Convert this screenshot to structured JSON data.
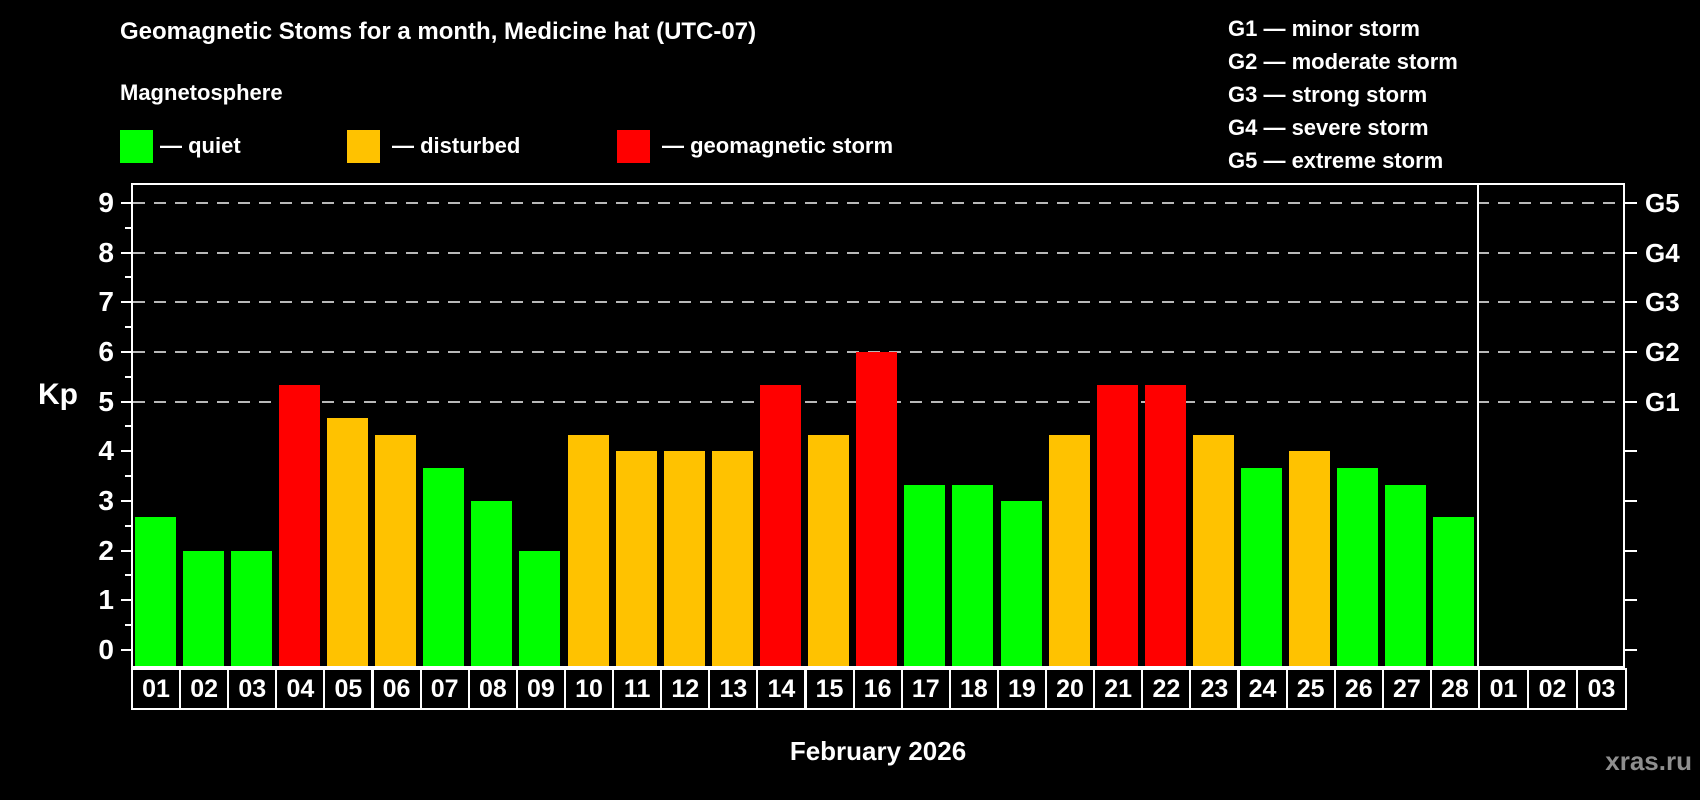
{
  "header": {
    "title": "Geomagnetic Stoms for a month, Medicine hat (UTC-07)",
    "subtitle": "Magnetosphere"
  },
  "legend": {
    "items": [
      {
        "name": "quiet",
        "label": "— quiet",
        "color": "#00ff00"
      },
      {
        "name": "disturbed",
        "label": "— disturbed",
        "color": "#ffc200"
      },
      {
        "name": "storm",
        "label": "— geomagnetic storm",
        "color": "#ff0000"
      }
    ]
  },
  "g_legend": {
    "items": [
      {
        "code": "G1",
        "label": "G1 — minor storm"
      },
      {
        "code": "G2",
        "label": "G2 — moderate storm"
      },
      {
        "code": "G3",
        "label": "G3 — strong storm"
      },
      {
        "code": "G4",
        "label": "G4 — severe storm"
      },
      {
        "code": "G5",
        "label": "G5 — extreme storm"
      }
    ]
  },
  "chart_data": {
    "type": "bar",
    "title": "Geomagnetic Stoms for a month, Medicine hat (UTC-07)",
    "subtitle": "Magnetosphere",
    "xlabel": "February 2026",
    "ylabel": "Kp",
    "ylim": [
      0,
      9.4
    ],
    "y_ticks": [
      0,
      1,
      2,
      3,
      4,
      5,
      6,
      7,
      8,
      9
    ],
    "grid": "dashed horizontal lines at Kp 5-9 only",
    "legend_position": "top-left",
    "g_axis_levels": [
      {
        "kp": 5,
        "label": "G1"
      },
      {
        "kp": 6,
        "label": "G2"
      },
      {
        "kp": 7,
        "label": "G3"
      },
      {
        "kp": 8,
        "label": "G4"
      },
      {
        "kp": 9,
        "label": "G5"
      }
    ],
    "categories": [
      "01",
      "02",
      "03",
      "04",
      "05",
      "06",
      "07",
      "08",
      "09",
      "10",
      "11",
      "12",
      "13",
      "14",
      "15",
      "16",
      "17",
      "18",
      "19",
      "20",
      "21",
      "22",
      "23",
      "24",
      "25",
      "26",
      "27",
      "28"
    ],
    "values": [
      2.67,
      2,
      2,
      5.33,
      4.67,
      4.33,
      3.67,
      3,
      2,
      4.33,
      4,
      4,
      4,
      5.33,
      4.33,
      6,
      3.33,
      3.33,
      3,
      4.33,
      5.33,
      5.33,
      4.33,
      3.67,
      4,
      3.67,
      3.33,
      2.67
    ],
    "statuses": [
      "quiet",
      "quiet",
      "quiet",
      "storm",
      "disturbed",
      "disturbed",
      "quiet",
      "quiet",
      "quiet",
      "disturbed",
      "disturbed",
      "disturbed",
      "disturbed",
      "storm",
      "disturbed",
      "storm",
      "quiet",
      "quiet",
      "quiet",
      "disturbed",
      "storm",
      "storm",
      "disturbed",
      "quiet",
      "disturbed",
      "quiet",
      "quiet",
      "quiet"
    ],
    "next_month_categories": [
      "01",
      "02",
      "03"
    ],
    "colors": {
      "quiet": "#00ff00",
      "disturbed": "#ffc200",
      "storm": "#ff0000"
    }
  },
  "footer": {
    "month_label": "February 2026",
    "watermark": "xras.ru"
  }
}
